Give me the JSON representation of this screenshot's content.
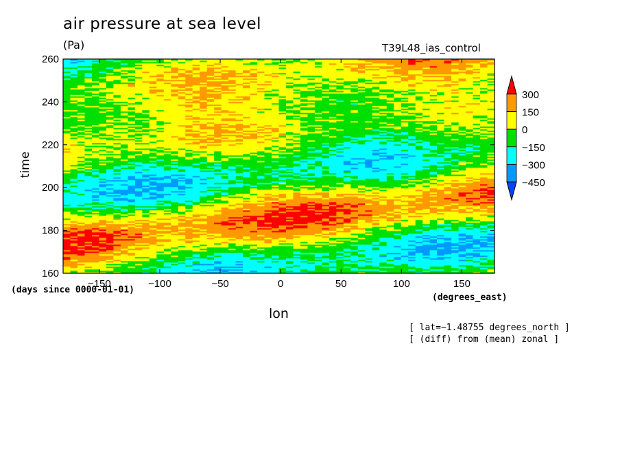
{
  "chart_data": {
    "type": "heatmap",
    "title": "air pressure at sea level",
    "units": "(Pa)",
    "run_name": "T39L48_ias_control",
    "xlabel": "lon",
    "ylabel": "time",
    "x_units": "(degrees_east)",
    "y_units": "(days since 0000-01-01)",
    "xlim": [
      -180,
      177
    ],
    "ylim": [
      160,
      260
    ],
    "x_ticks": [
      -150,
      -100,
      -50,
      0,
      50,
      100,
      150
    ],
    "x_tick_labels": [
      "−150",
      "−100",
      "−50",
      "0",
      "50",
      "100",
      "150"
    ],
    "y_ticks": [
      160,
      180,
      200,
      220,
      240,
      260
    ],
    "y_tick_labels": [
      "160",
      "180",
      "200",
      "220",
      "240",
      "260"
    ],
    "colorbar": {
      "levels": [
        300,
        150,
        0,
        -150,
        -300,
        -450
      ],
      "labels": [
        "300",
        "150",
        "0",
        "−150",
        "−300",
        "−450"
      ],
      "colors": [
        "#ff0000",
        "#ff9900",
        "#ffff00",
        "#00e000",
        "#00ffff",
        "#0099ff",
        "#0044ff"
      ]
    },
    "notes": [
      "[ lat=−1.48755 degrees_north ]",
      "[ (diff) from (mean) zonal ]"
    ]
  }
}
